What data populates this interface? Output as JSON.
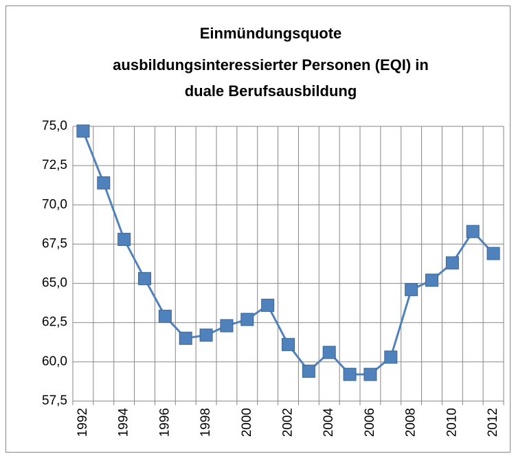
{
  "chart_data": {
    "type": "line",
    "title": [
      "Einmündungsquote",
      "ausbildungsinteressierter Personen (EQI) in",
      "duale Berufsausbildung"
    ],
    "categories": [
      "1992",
      null,
      "1994",
      null,
      "1996",
      null,
      "1998",
      null,
      "2000",
      null,
      "2002",
      null,
      "2004",
      null,
      "2006",
      null,
      "2008",
      null,
      "2010",
      null,
      "2012"
    ],
    "values": [
      74.7,
      71.4,
      67.8,
      65.3,
      62.9,
      61.5,
      61.7,
      62.3,
      62.7,
      63.6,
      61.1,
      59.4,
      60.6,
      59.2,
      59.2,
      60.3,
      64.6,
      65.2,
      66.3,
      68.3,
      66.9
    ],
    "color": "#4f81bd",
    "ylim": [
      57.5,
      75
    ],
    "yticks": [
      {
        "value": 57.5,
        "label": "57,5"
      },
      {
        "value": 60,
        "label": "60,0"
      },
      {
        "value": 62.5,
        "label": "62,5"
      },
      {
        "value": 65,
        "label": "65,0"
      },
      {
        "value": 67.5,
        "label": "67,5"
      },
      {
        "value": 70,
        "label": "70,0"
      },
      {
        "value": 72.5,
        "label": "72,5"
      },
      {
        "value": 75,
        "label": "75,0"
      }
    ],
    "grid": true
  }
}
